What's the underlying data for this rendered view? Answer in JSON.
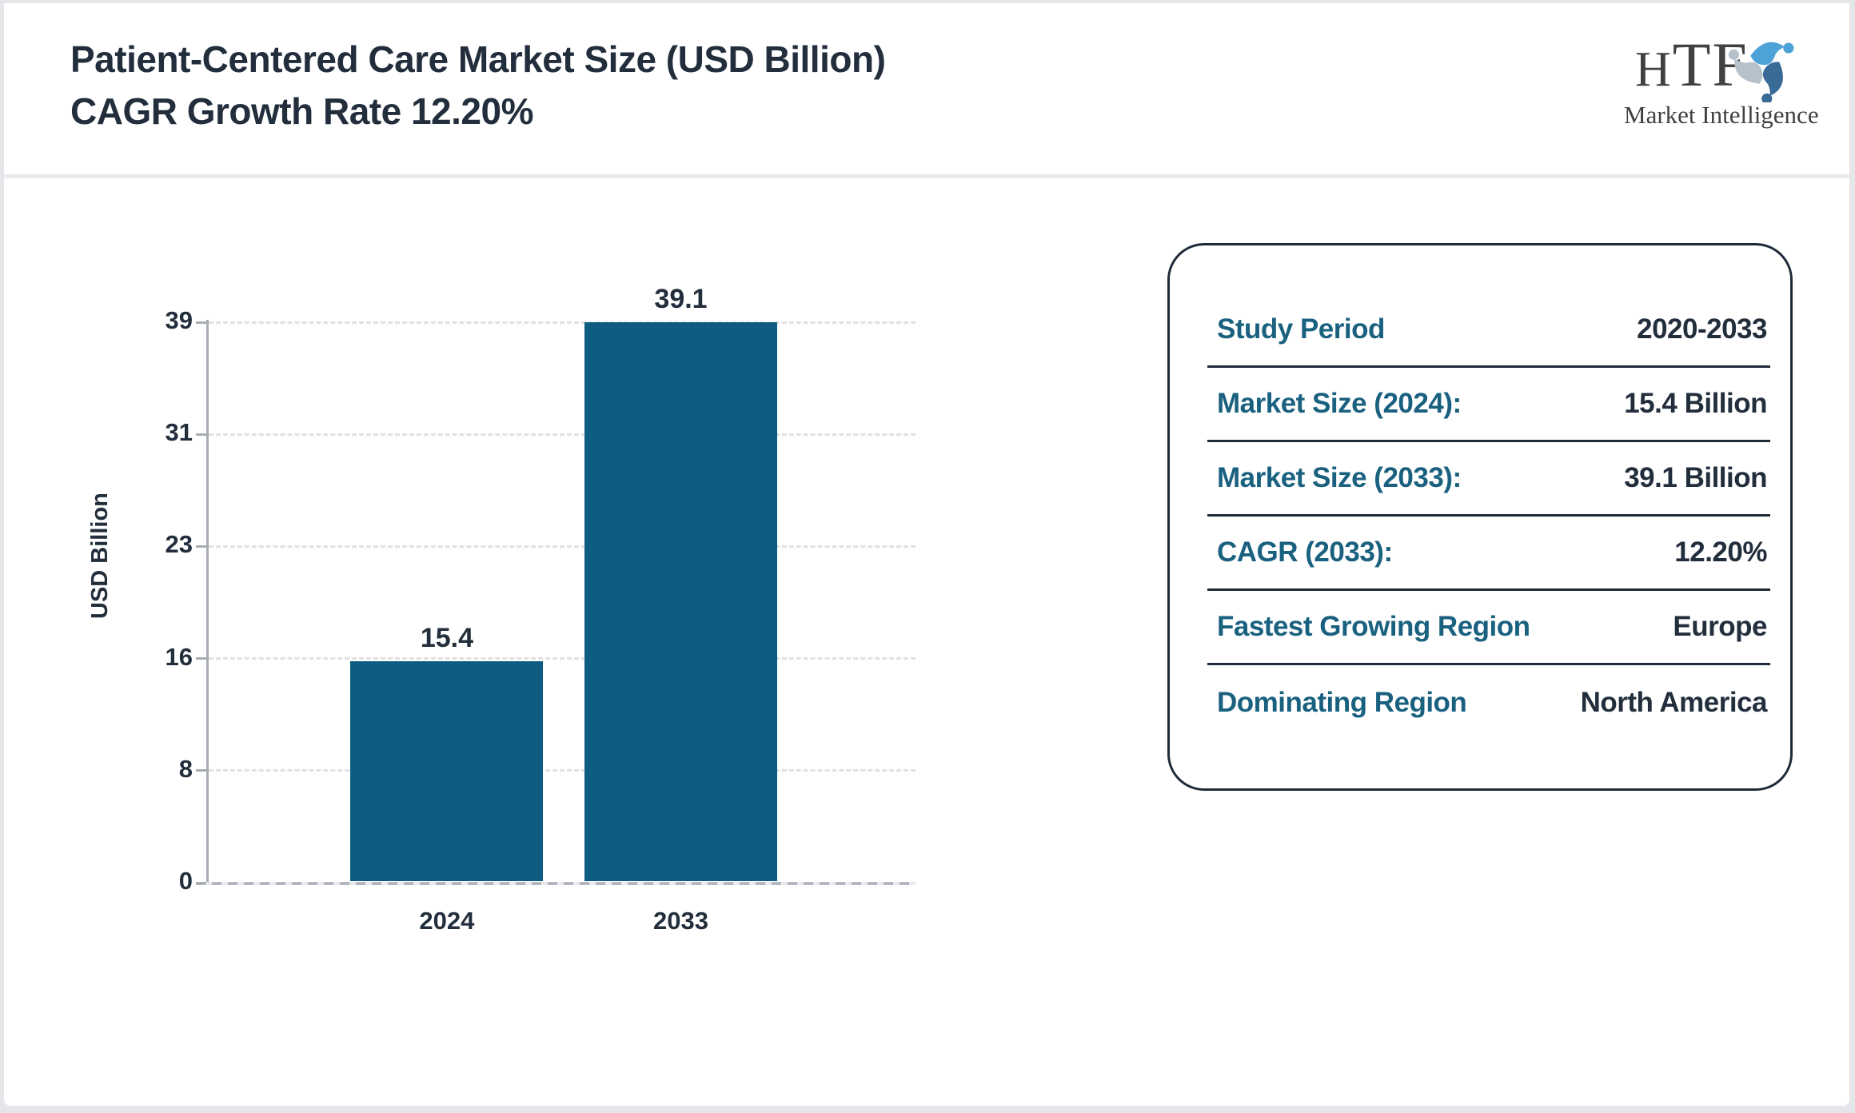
{
  "header": {
    "title_line1": "Patient-Centered Care Market Size (USD Billion)",
    "title_line2": "CAGR Growth Rate 12.20%"
  },
  "logo": {
    "brand": "HTF",
    "subtitle": "Market Intelligence",
    "icon": "triskelion-people-icon",
    "colors": {
      "light_blue": "#4da3d8",
      "steel_blue": "#3a6a96",
      "gray_blue": "#b7c1cb",
      "text": "#414144"
    }
  },
  "chart_data": {
    "type": "bar",
    "title": "Patient-Centered Care Market Size (USD Billion) CAGR Growth Rate 12.20%",
    "categories": [
      "2024",
      "2033"
    ],
    "values": [
      15.4,
      39.1
    ],
    "bar_labels": [
      "15.4",
      "39.1"
    ],
    "xlabel": "",
    "ylabel": "USD Billion",
    "yticks": [
      0,
      8,
      16,
      23,
      31,
      39
    ],
    "ylim": [
      0,
      39
    ],
    "grid": "horizontal-dashed",
    "legend": "none",
    "bar_color": "#0e5c81"
  },
  "info_panel": {
    "rows": [
      {
        "label": "Study Period",
        "value": "2020-2033"
      },
      {
        "label": "Market Size (2024):",
        "value": "15.4 Billion"
      },
      {
        "label": "Market Size (2033):",
        "value": "39.1 Billion"
      },
      {
        "label": "CAGR (2033):",
        "value": "12.20%"
      },
      {
        "label": "Fastest Growing Region",
        "value": "Europe"
      },
      {
        "label": "Dominating Region",
        "value": "North America"
      }
    ]
  },
  "colors": {
    "accent_teal": "#1a6180",
    "dark_navy": "#232e3d",
    "bar_fill": "#0e5c81",
    "axis_gray": "#a8acb4",
    "panel_border": "#1f2b3a",
    "outer_border": "#e5e6e9"
  }
}
